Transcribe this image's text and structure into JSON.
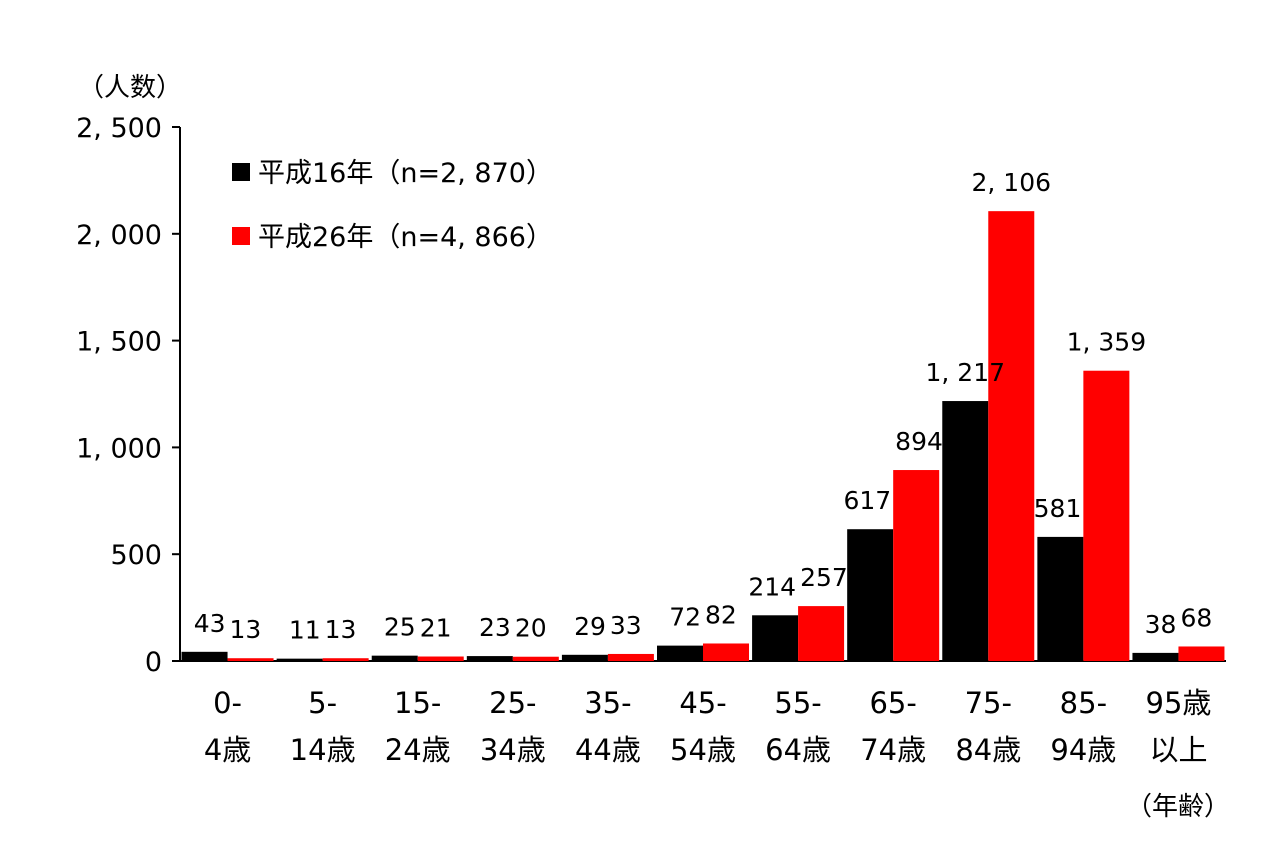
{
  "chart_data": {
    "type": "bar",
    "title": "",
    "ylabel": "（人数）",
    "xlabel": "（年齢）",
    "ylim": [
      0,
      2500
    ],
    "yticks": [
      0,
      500,
      1000,
      1500,
      2000,
      2500
    ],
    "ytick_labels": [
      "0",
      "500",
      "1, 000",
      "1, 500",
      "2, 000",
      "2, 500"
    ],
    "grid": false,
    "legend_position": "top-left",
    "categories": [
      [
        "0-",
        "4歳"
      ],
      [
        "5-",
        "14歳"
      ],
      [
        "15-",
        "24歳"
      ],
      [
        "25-",
        "34歳"
      ],
      [
        "35-",
        "44歳"
      ],
      [
        "45-",
        "54歳"
      ],
      [
        "55-",
        "64歳"
      ],
      [
        "65-",
        "74歳"
      ],
      [
        "75-",
        "84歳"
      ],
      [
        "85-",
        "94歳"
      ],
      [
        "95歳",
        "以上"
      ]
    ],
    "series": [
      {
        "name": "平成16年（n=2, 870）",
        "color": "#000000",
        "values": [
          43,
          11,
          25,
          23,
          29,
          72,
          214,
          617,
          1217,
          581,
          38
        ],
        "value_labels": [
          "43",
          "11",
          "25",
          "23",
          "29",
          "72",
          "214",
          "617",
          "1, 217",
          "581",
          "38"
        ]
      },
      {
        "name": "平成26年（n=4, 866）",
        "color": "#ff0000",
        "values": [
          13,
          13,
          21,
          20,
          33,
          82,
          257,
          894,
          2106,
          1359,
          68
        ],
        "value_labels": [
          "13",
          "13",
          "21",
          "20",
          "33",
          "82",
          "257",
          "894",
          "2, 106",
          "1, 359",
          "68"
        ]
      }
    ]
  }
}
